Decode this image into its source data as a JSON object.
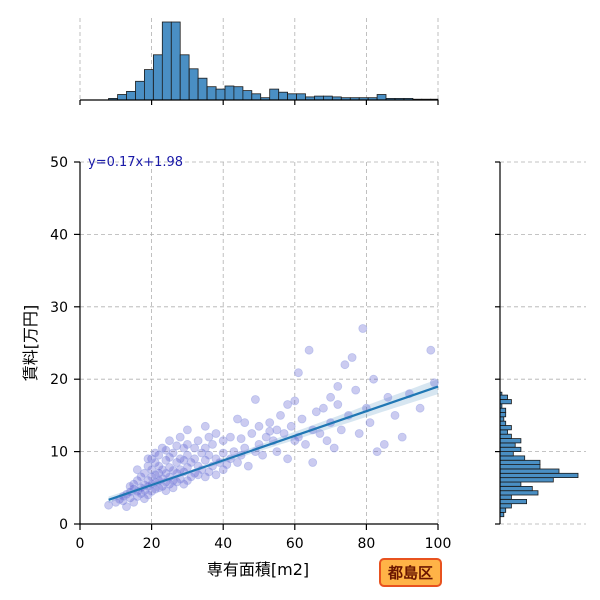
{
  "chart_data": {
    "type": "scatter",
    "xlabel": "専有面積[m2]",
    "ylabel": "賃料[万円]",
    "xlim": [
      0,
      100
    ],
    "ylim": [
      0,
      50
    ],
    "xticks": [
      0,
      20,
      40,
      60,
      80,
      100
    ],
    "yticks": [
      0,
      10,
      20,
      30,
      40,
      50
    ],
    "grid": true,
    "regression": {
      "label": "y=0.17x+1.98",
      "slope": 0.17,
      "intercept": 1.98,
      "x_range": [
        8,
        100
      ]
    },
    "badge": "都島区",
    "points": [
      [
        8,
        2.6
      ],
      [
        10,
        3.0
      ],
      [
        11,
        3.4
      ],
      [
        12,
        3.2
      ],
      [
        12,
        3.8
      ],
      [
        13,
        2.4
      ],
      [
        13,
        4.1
      ],
      [
        14,
        3.6
      ],
      [
        14,
        4.4
      ],
      [
        15,
        3.0
      ],
      [
        15,
        4.8
      ],
      [
        15,
        5.5
      ],
      [
        16,
        3.8
      ],
      [
        16,
        4.5
      ],
      [
        16,
        6.0
      ],
      [
        17,
        4.2
      ],
      [
        17,
        5.0
      ],
      [
        17,
        6.5
      ],
      [
        18,
        3.5
      ],
      [
        18,
        4.6
      ],
      [
        18,
        5.4
      ],
      [
        18,
        7.0
      ],
      [
        19,
        4.0
      ],
      [
        19,
        5.2
      ],
      [
        19,
        6.0
      ],
      [
        19,
        8.0
      ],
      [
        20,
        4.5
      ],
      [
        20,
        5.5
      ],
      [
        20,
        6.5
      ],
      [
        20,
        7.5
      ],
      [
        20,
        9.0
      ],
      [
        21,
        4.8
      ],
      [
        21,
        5.8
      ],
      [
        21,
        6.8
      ],
      [
        21,
        8.5
      ],
      [
        22,
        5.0
      ],
      [
        22,
        6.0
      ],
      [
        22,
        7.0
      ],
      [
        22,
        8.0
      ],
      [
        22,
        9.5
      ],
      [
        23,
        5.2
      ],
      [
        23,
        6.3
      ],
      [
        23,
        7.5
      ],
      [
        23,
        10.5
      ],
      [
        24,
        4.6
      ],
      [
        24,
        5.8
      ],
      [
        24,
        7.0
      ],
      [
        24,
        8.8
      ],
      [
        25,
        5.5
      ],
      [
        25,
        6.5
      ],
      [
        25,
        7.8
      ],
      [
        25,
        9.2
      ],
      [
        25,
        11.5
      ],
      [
        26,
        5.0
      ],
      [
        26,
        6.0
      ],
      [
        26,
        7.4
      ],
      [
        26,
        9.8
      ],
      [
        27,
        5.8
      ],
      [
        27,
        7.0
      ],
      [
        27,
        8.5
      ],
      [
        27,
        10.8
      ],
      [
        28,
        6.2
      ],
      [
        28,
        7.5
      ],
      [
        28,
        9.0
      ],
      [
        28,
        12.0
      ],
      [
        29,
        5.5
      ],
      [
        29,
        7.2
      ],
      [
        29,
        8.8
      ],
      [
        30,
        6.0
      ],
      [
        30,
        7.8
      ],
      [
        30,
        9.5
      ],
      [
        30,
        11.0
      ],
      [
        30,
        13.0
      ],
      [
        31,
        6.5
      ],
      [
        31,
        8.5
      ],
      [
        32,
        7.0
      ],
      [
        32,
        9.0
      ],
      [
        32,
        10.5
      ],
      [
        33,
        6.8
      ],
      [
        33,
        8.0
      ],
      [
        33,
        11.5
      ],
      [
        34,
        7.5
      ],
      [
        34,
        9.8
      ],
      [
        35,
        6.5
      ],
      [
        35,
        8.8
      ],
      [
        35,
        10.5
      ],
      [
        35,
        13.5
      ],
      [
        36,
        7.2
      ],
      [
        36,
        9.5
      ],
      [
        37,
        8.0
      ],
      [
        37,
        11.0
      ],
      [
        38,
        6.8
      ],
      [
        38,
        9.0
      ],
      [
        38,
        12.5
      ],
      [
        39,
        8.5
      ],
      [
        40,
        7.5
      ],
      [
        40,
        9.8
      ],
      [
        40,
        11.5
      ],
      [
        41,
        8.2
      ],
      [
        42,
        9.0
      ],
      [
        42,
        12.0
      ],
      [
        43,
        10.0
      ],
      [
        44,
        8.5
      ],
      [
        44,
        14.5
      ],
      [
        45,
        9.5
      ],
      [
        45,
        11.8
      ],
      [
        46,
        10.5
      ],
      [
        47,
        8.0
      ],
      [
        48,
        12.5
      ],
      [
        49,
        10.0
      ],
      [
        49,
        17.2
      ],
      [
        50,
        11.0
      ],
      [
        50,
        13.5
      ],
      [
        51,
        9.5
      ],
      [
        52,
        12.0
      ],
      [
        53,
        14.0
      ],
      [
        54,
        11.5
      ],
      [
        55,
        10.0
      ],
      [
        55,
        13.0
      ],
      [
        56,
        15.0
      ],
      [
        57,
        12.5
      ],
      [
        58,
        9.0
      ],
      [
        58,
        16.5
      ],
      [
        59,
        13.5
      ],
      [
        60,
        11.5
      ],
      [
        60,
        17.0
      ],
      [
        61,
        12.0
      ],
      [
        62,
        14.5
      ],
      [
        63,
        11.0
      ],
      [
        64,
        24.0
      ],
      [
        65,
        8.5
      ],
      [
        65,
        13.0
      ],
      [
        66,
        15.5
      ],
      [
        67,
        12.5
      ],
      [
        68,
        16.0
      ],
      [
        69,
        11.5
      ],
      [
        70,
        14.0
      ],
      [
        70,
        17.5
      ],
      [
        71,
        10.5
      ],
      [
        72,
        16.5
      ],
      [
        73,
        13.0
      ],
      [
        74,
        22.0
      ],
      [
        75,
        15.0
      ],
      [
        76,
        23.0
      ],
      [
        78,
        12.5
      ],
      [
        79,
        27.0
      ],
      [
        80,
        16.0
      ],
      [
        81,
        14.0
      ],
      [
        82,
        20.0
      ],
      [
        83,
        10.0
      ],
      [
        85,
        11.0
      ],
      [
        86,
        17.5
      ],
      [
        88,
        15.0
      ],
      [
        90,
        12.0
      ],
      [
        92,
        18.0
      ],
      [
        95,
        16.0
      ],
      [
        98,
        24.0
      ],
      [
        99,
        19.5
      ],
      [
        61,
        20.9
      ],
      [
        77,
        18.5
      ],
      [
        72,
        19.0
      ],
      [
        53,
        12.8
      ],
      [
        46,
        14.0
      ],
      [
        36,
        12.0
      ],
      [
        29,
        10.5
      ],
      [
        24,
        10.2
      ],
      [
        21,
        9.8
      ],
      [
        19,
        9.0
      ],
      [
        16,
        7.5
      ],
      [
        14,
        5.2
      ]
    ],
    "x_marginal": {
      "bin_edges": [
        8,
        10.5,
        13,
        15.5,
        18,
        20.5,
        23,
        25.5,
        28,
        30.5,
        33,
        35.5,
        38,
        40.5,
        43,
        45.5,
        48,
        50.5,
        53,
        55.5,
        58,
        60.5,
        63,
        65.5,
        68,
        70.5,
        73,
        75.5,
        78,
        80.5,
        83,
        85.5,
        88,
        90.5,
        93,
        95.5,
        98,
        100
      ],
      "counts": [
        2,
        7,
        11,
        24,
        39,
        58,
        100,
        100,
        58,
        40,
        28,
        17,
        14,
        18,
        17,
        12,
        8,
        3,
        14,
        10,
        8,
        8,
        4,
        5,
        5,
        4,
        3,
        3,
        3,
        3,
        7,
        2,
        2,
        2,
        1,
        1,
        1
      ]
    },
    "y_marginal": {
      "bin_edges": [
        1,
        1.6,
        2.2,
        2.8,
        3.4,
        4.0,
        4.6,
        5.2,
        5.8,
        6.4,
        7.0,
        7.6,
        8.2,
        8.8,
        9.4,
        10.0,
        10.6,
        11.2,
        11.8,
        12.4,
        13.0,
        13.6,
        14.2,
        14.8,
        15.4,
        16.0,
        16.6,
        17.2,
        17.8,
        18.2
      ],
      "counts": [
        2,
        3,
        6,
        14,
        6,
        20,
        17,
        11,
        28,
        41,
        31,
        21,
        21,
        13,
        7,
        11,
        8,
        11,
        6,
        4,
        6,
        3,
        2,
        3,
        3,
        1,
        6,
        4,
        1
      ]
    }
  }
}
